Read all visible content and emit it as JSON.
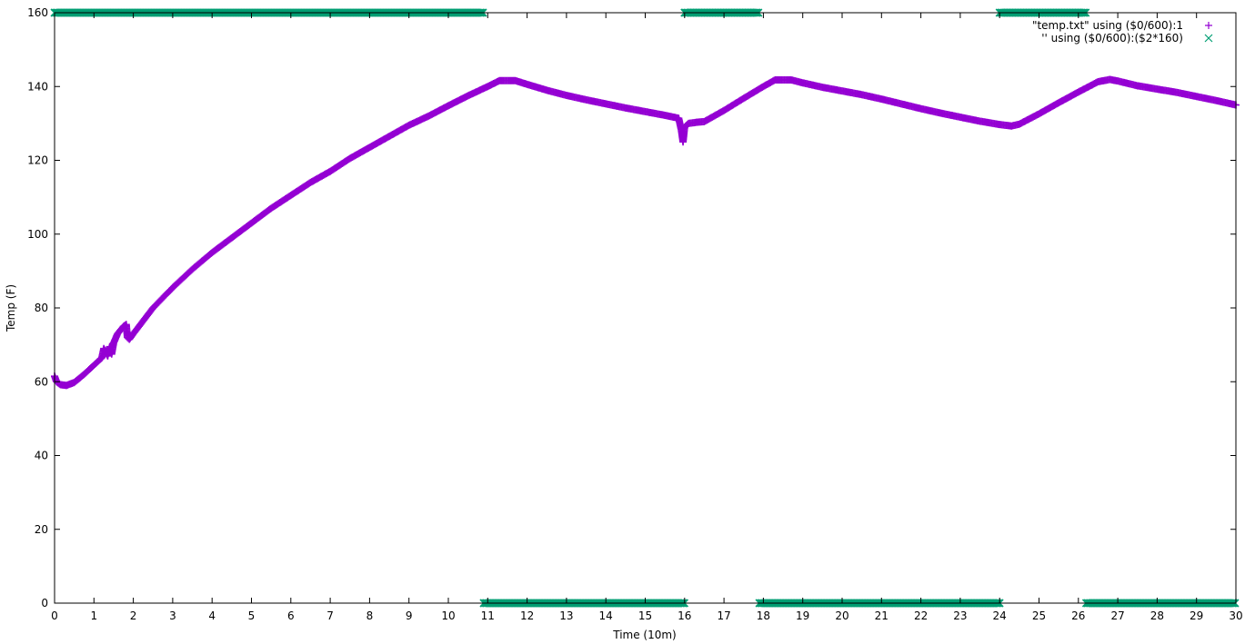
{
  "chart_data": {
    "type": "scatter",
    "title": "",
    "xlabel": "Time (10m)",
    "ylabel": "Temp (F)",
    "xlim": [
      0,
      30
    ],
    "ylim": [
      0,
      160
    ],
    "xticks": [
      0,
      1,
      2,
      3,
      4,
      5,
      6,
      7,
      8,
      9,
      10,
      11,
      12,
      13,
      14,
      15,
      16,
      17,
      18,
      19,
      20,
      21,
      22,
      23,
      24,
      25,
      26,
      27,
      28,
      29,
      30
    ],
    "yticks": [
      0,
      20,
      40,
      60,
      80,
      100,
      120,
      140,
      160
    ],
    "grid": false,
    "legend_position": "top-right",
    "series": [
      {
        "name": "\"temp.txt\" using ($0/600):1",
        "marker": "+",
        "color": "#9400d3",
        "points": [
          [
            0.0,
            61.5
          ],
          [
            0.05,
            60.0
          ],
          [
            0.15,
            59.2
          ],
          [
            0.3,
            59.0
          ],
          [
            0.5,
            59.8
          ],
          [
            0.75,
            62.0
          ],
          [
            1.0,
            64.5
          ],
          [
            1.2,
            66.5
          ],
          [
            1.25,
            69.0
          ],
          [
            1.35,
            67.0
          ],
          [
            1.4,
            69.5
          ],
          [
            1.45,
            67.5
          ],
          [
            1.5,
            70.5
          ],
          [
            1.6,
            73.0
          ],
          [
            1.75,
            75.0
          ],
          [
            1.82,
            75.5
          ],
          [
            1.85,
            72.0
          ],
          [
            1.9,
            71.5
          ],
          [
            2.0,
            73.0
          ],
          [
            2.25,
            76.5
          ],
          [
            2.5,
            80.0
          ],
          [
            3.0,
            85.5
          ],
          [
            3.5,
            90.5
          ],
          [
            4.0,
            95.0
          ],
          [
            4.5,
            99.0
          ],
          [
            5.0,
            103.0
          ],
          [
            5.5,
            107.0
          ],
          [
            6.0,
            110.5
          ],
          [
            6.5,
            114.0
          ],
          [
            7.0,
            117.0
          ],
          [
            7.5,
            120.5
          ],
          [
            8.0,
            123.5
          ],
          [
            8.5,
            126.5
          ],
          [
            9.0,
            129.5
          ],
          [
            9.5,
            132.0
          ],
          [
            10.0,
            134.8
          ],
          [
            10.5,
            137.5
          ],
          [
            11.0,
            140.0
          ],
          [
            11.3,
            141.6
          ],
          [
            11.7,
            141.6
          ],
          [
            12.0,
            140.6
          ],
          [
            12.5,
            139.0
          ],
          [
            13.0,
            137.6
          ],
          [
            13.5,
            136.4
          ],
          [
            14.0,
            135.3
          ],
          [
            14.5,
            134.2
          ],
          [
            15.0,
            133.2
          ],
          [
            15.5,
            132.2
          ],
          [
            15.85,
            131.4
          ],
          [
            15.92,
            128.0
          ],
          [
            15.96,
            125.0
          ],
          [
            16.0,
            129.0
          ],
          [
            16.1,
            130.0
          ],
          [
            16.3,
            130.3
          ],
          [
            16.5,
            130.5
          ],
          [
            17.0,
            133.5
          ],
          [
            17.5,
            136.8
          ],
          [
            18.0,
            140.0
          ],
          [
            18.3,
            141.8
          ],
          [
            18.7,
            141.8
          ],
          [
            19.0,
            141.0
          ],
          [
            19.5,
            139.8
          ],
          [
            20.0,
            138.8
          ],
          [
            20.5,
            137.8
          ],
          [
            21.0,
            136.6
          ],
          [
            21.5,
            135.3
          ],
          [
            22.0,
            134.0
          ],
          [
            22.5,
            132.8
          ],
          [
            23.0,
            131.7
          ],
          [
            23.5,
            130.6
          ],
          [
            24.0,
            129.7
          ],
          [
            24.3,
            129.3
          ],
          [
            24.5,
            129.8
          ],
          [
            25.0,
            132.6
          ],
          [
            25.5,
            135.6
          ],
          [
            26.0,
            138.5
          ],
          [
            26.5,
            141.3
          ],
          [
            26.8,
            141.9
          ],
          [
            27.0,
            141.5
          ],
          [
            27.5,
            140.2
          ],
          [
            28.0,
            139.3
          ],
          [
            28.5,
            138.4
          ],
          [
            29.0,
            137.3
          ],
          [
            29.5,
            136.2
          ],
          [
            30.0,
            135.0
          ]
        ]
      },
      {
        "name": "'' using ($0/600):($2*160)",
        "marker": "x",
        "color": "#009e73",
        "segments": [
          {
            "x0": 0.0,
            "x1": 10.9,
            "y": 160
          },
          {
            "x0": 10.9,
            "x1": 16.0,
            "y": 0
          },
          {
            "x0": 16.0,
            "x1": 17.9,
            "y": 160
          },
          {
            "x0": 17.9,
            "x1": 24.0,
            "y": 0
          },
          {
            "x0": 24.0,
            "x1": 26.2,
            "y": 160
          },
          {
            "x0": 26.2,
            "x1": 30.0,
            "y": 0
          }
        ]
      }
    ]
  }
}
